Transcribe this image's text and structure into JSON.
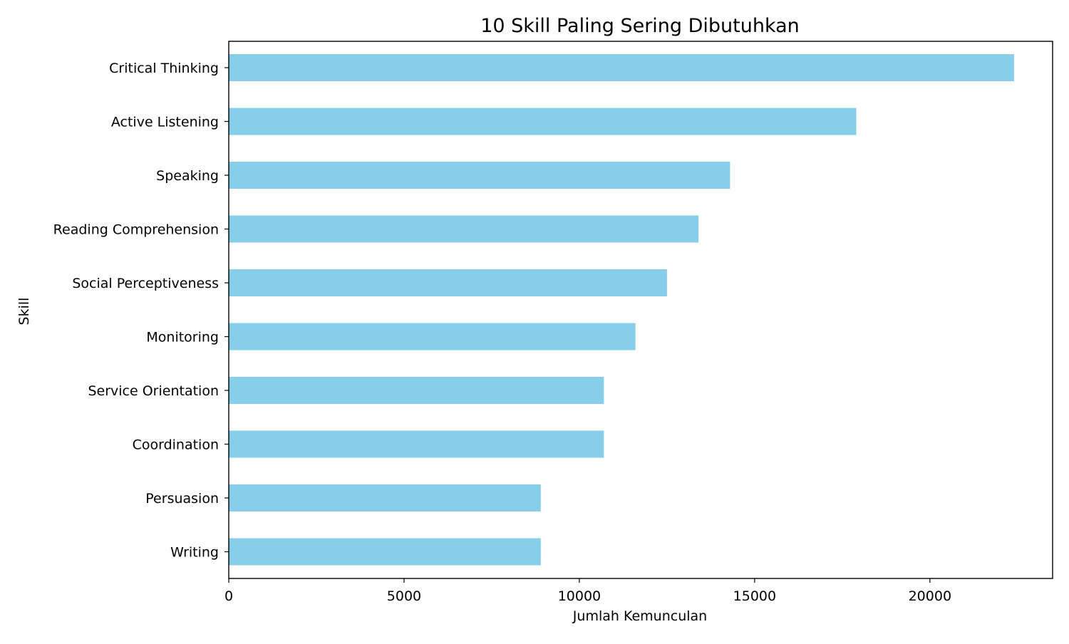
{
  "chart_data": {
    "type": "bar",
    "orientation": "horizontal",
    "title": "10 Skill Paling Sering Dibutuhkan",
    "xlabel": "Jumlah Kemunculan",
    "ylabel": "Skill",
    "categories": [
      "Critical Thinking",
      "Active Listening",
      "Speaking",
      "Reading Comprehension",
      "Social Perceptiveness",
      "Monitoring",
      "Service Orientation",
      "Coordination",
      "Persuasion",
      "Writing"
    ],
    "values": [
      22400,
      17900,
      14300,
      13400,
      12500,
      11600,
      10700,
      10700,
      8900,
      8900
    ],
    "xlim": [
      0,
      23500
    ],
    "xticks": [
      "0",
      "5000",
      "10000",
      "15000",
      "20000"
    ],
    "bar_color": "#87CEEB",
    "grid": false,
    "legend": "none"
  }
}
